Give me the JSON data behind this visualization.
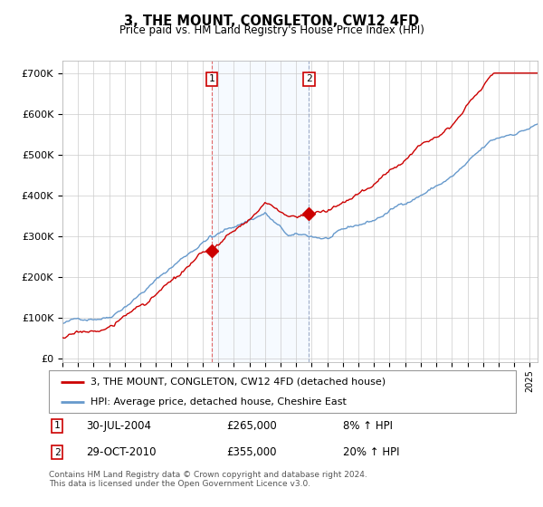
{
  "title": "3, THE MOUNT, CONGLETON, CW12 4FD",
  "subtitle": "Price paid vs. HM Land Registry's House Price Index (HPI)",
  "ylabel_ticks": [
    "£0",
    "£100K",
    "£200K",
    "£300K",
    "£400K",
    "£500K",
    "£600K",
    "£700K"
  ],
  "ytick_values": [
    0,
    100000,
    200000,
    300000,
    400000,
    500000,
    600000,
    700000
  ],
  "ylim": [
    -10000,
    730000
  ],
  "xlim_start": 1995.0,
  "xlim_end": 2025.5,
  "background_color": "#ffffff",
  "grid_color": "#cccccc",
  "red_line_color": "#cc0000",
  "blue_line_color": "#6699cc",
  "shade_color": "#ddeeff",
  "sale1_x": 2004.58,
  "sale1_y": 265000,
  "sale2_x": 2010.83,
  "sale2_y": 355000,
  "legend_line1": "3, THE MOUNT, CONGLETON, CW12 4FD (detached house)",
  "legend_line2": "HPI: Average price, detached house, Cheshire East",
  "sale1_label": "1",
  "sale1_date": "30-JUL-2004",
  "sale1_price": "£265,000",
  "sale1_hpi": "8% ↑ HPI",
  "sale2_label": "2",
  "sale2_date": "29-OCT-2010",
  "sale2_price": "£355,000",
  "sale2_hpi": "20% ↑ HPI",
  "footnote": "Contains HM Land Registry data © Crown copyright and database right 2024.\nThis data is licensed under the Open Government Licence v3.0."
}
